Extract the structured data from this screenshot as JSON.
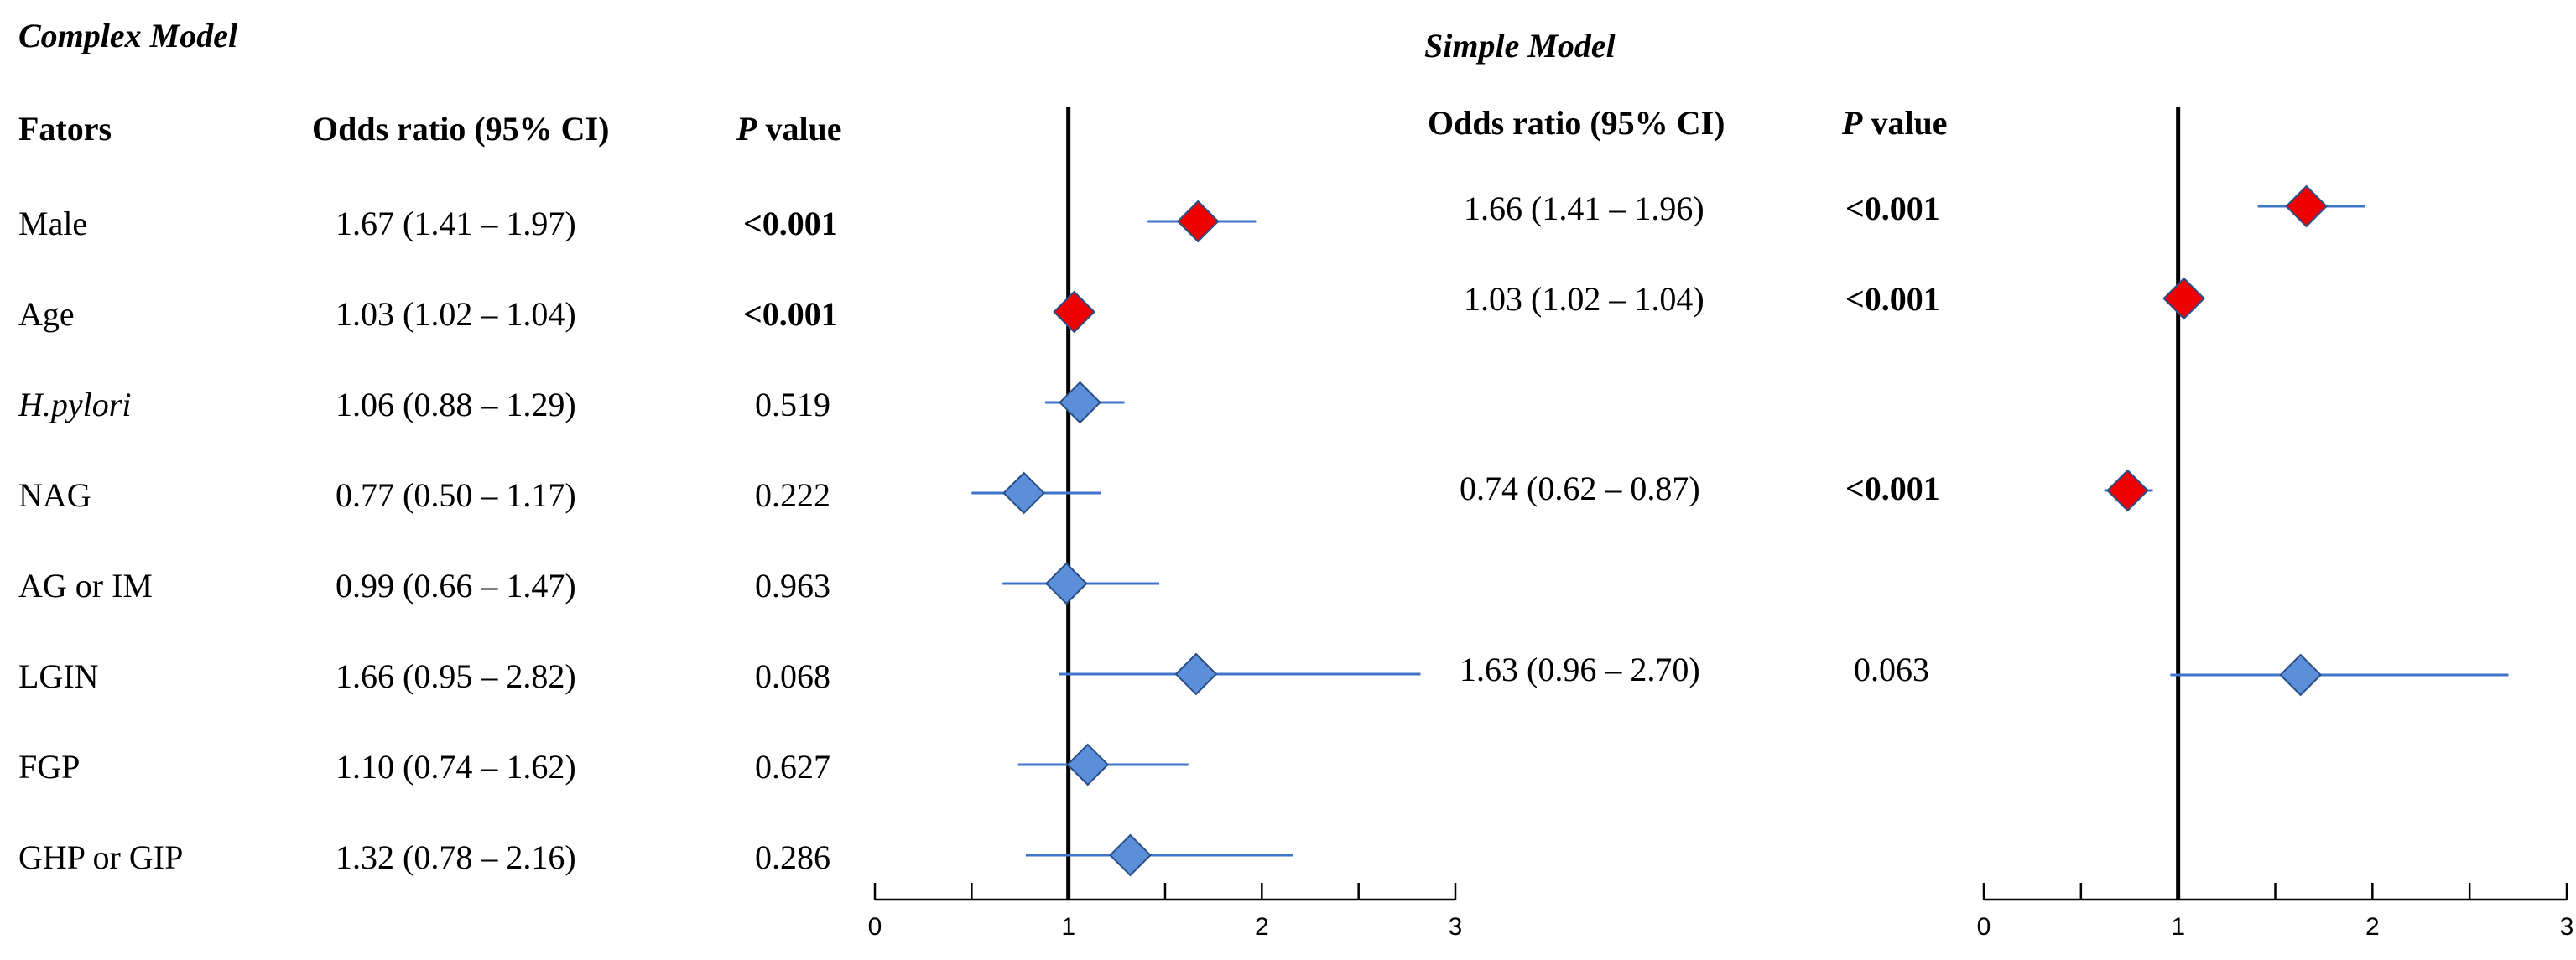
{
  "colors": {
    "significant": "#ee0000",
    "nonsignificant": "#5b8fd9",
    "ci_line": "#3f74c9",
    "marker_outline": "#2a4f86",
    "axis": "#000000"
  },
  "chart_data": [
    {
      "type": "forest",
      "title": "Complex Model",
      "column_headers": {
        "factors": "Fators",
        "or_ci": "Odds ratio (95% CI)",
        "p_prefix": "P",
        "p_suffix": " value"
      },
      "factors": [
        "Male",
        "Age",
        "H.pylori",
        "NAG",
        "AG or IM",
        "LGIN",
        "FGP",
        "GHP or GIP"
      ],
      "rows": [
        {
          "factor": "Male",
          "or": 1.67,
          "lo": 1.41,
          "hi": 1.97,
          "or_text": "1.67 (1.41 – 1.97)",
          "p_text": "<0.001",
          "significant": true
        },
        {
          "factor": "Age",
          "or": 1.03,
          "lo": 1.02,
          "hi": 1.04,
          "or_text": "1.03 (1.02 – 1.04)",
          "p_text": "<0.001",
          "significant": true
        },
        {
          "factor": "H.pylori",
          "or": 1.06,
          "lo": 0.88,
          "hi": 1.29,
          "or_text": "1.06 (0.88 – 1.29)",
          "p_text": "0.519",
          "significant": false
        },
        {
          "factor": "NAG",
          "or": 0.77,
          "lo": 0.5,
          "hi": 1.17,
          "or_text": "0.77 (0.50 – 1.17)",
          "p_text": "0.222",
          "significant": false
        },
        {
          "factor": "AG or IM",
          "or": 0.99,
          "lo": 0.66,
          "hi": 1.47,
          "or_text": "0.99 (0.66 – 1.47)",
          "p_text": "0.963",
          "significant": false
        },
        {
          "factor": "LGIN",
          "or": 1.66,
          "lo": 0.95,
          "hi": 2.82,
          "or_text": "1.66 (0.95 – 2.82)",
          "p_text": "0.068",
          "significant": false
        },
        {
          "factor": "FGP",
          "or": 1.1,
          "lo": 0.74,
          "hi": 1.62,
          "or_text": "1.10 (0.74 – 1.62)",
          "p_text": "0.627",
          "significant": false
        },
        {
          "factor": "GHP or GIP",
          "or": 1.32,
          "lo": 0.78,
          "hi": 2.16,
          "or_text": "1.32 (0.78 – 2.16)",
          "p_text": "0.286",
          "significant": false
        }
      ],
      "xlim": [
        0,
        3
      ],
      "xticks": [
        0,
        1,
        2,
        3
      ],
      "reference_line": 1
    },
    {
      "type": "forest",
      "title": "Simple Model",
      "column_headers": {
        "or_ci": "Odds ratio (95% CI)",
        "p_prefix": "P",
        "p_suffix": " value"
      },
      "rows": [
        {
          "factor": "Male",
          "or": 1.66,
          "lo": 1.41,
          "hi": 1.96,
          "or_text": "1.66 (1.41 – 1.96)",
          "p_text": "<0.001",
          "significant": true
        },
        {
          "factor": "Age",
          "or": 1.03,
          "lo": 1.02,
          "hi": 1.04,
          "or_text": "1.03 (1.02 – 1.04)",
          "p_text": "<0.001",
          "significant": true
        },
        {
          "factor": "NAG",
          "or": 0.74,
          "lo": 0.62,
          "hi": 0.87,
          "or_text": "0.74 (0.62 – 0.87)",
          "p_text": "<0.001",
          "significant": true
        },
        {
          "factor": "LGIN",
          "or": 1.63,
          "lo": 0.96,
          "hi": 2.7,
          "or_text": "1.63 (0.96 – 2.70)",
          "p_text": "0.063",
          "significant": false
        }
      ],
      "xlim": [
        0,
        3
      ],
      "xticks": [
        0,
        1,
        2,
        3
      ],
      "reference_line": 1
    }
  ]
}
